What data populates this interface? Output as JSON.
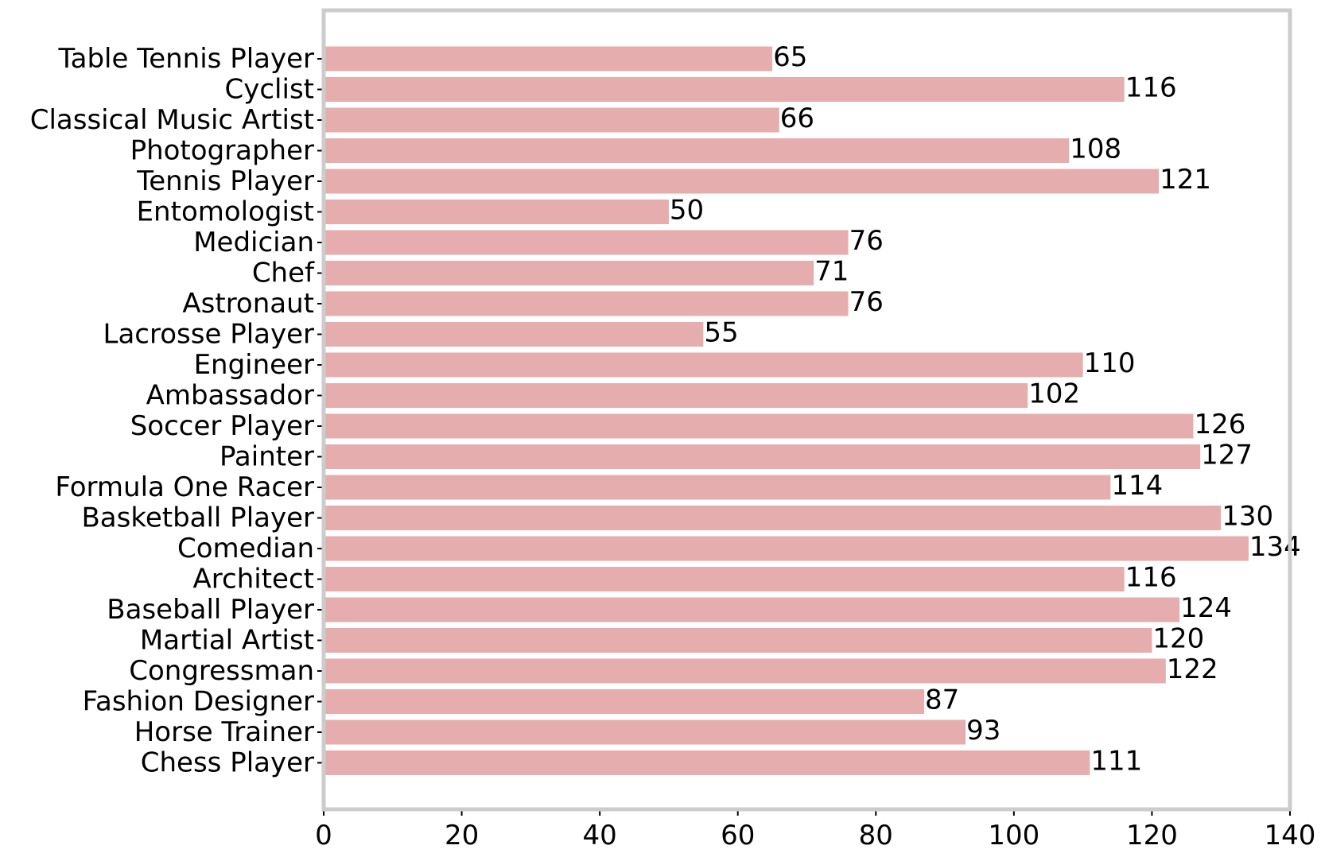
{
  "chart_data": {
    "type": "bar",
    "orientation": "horizontal",
    "categories": [
      "Table Tennis Player",
      "Cyclist",
      "Classical Music Artist",
      "Photographer",
      "Tennis Player",
      "Entomologist",
      "Medician",
      "Chef",
      "Astronaut",
      "Lacrosse Player",
      "Engineer",
      "Ambassador",
      "Soccer Player",
      "Painter",
      "Formula One Racer",
      "Basketball Player",
      "Comedian",
      "Architect",
      "Baseball Player",
      "Martial Artist",
      "Congressman",
      "Fashion Designer",
      "Horse Trainer",
      "Chess Player"
    ],
    "values": [
      65,
      116,
      66,
      108,
      121,
      50,
      76,
      71,
      76,
      55,
      110,
      102,
      126,
      127,
      114,
      130,
      134,
      116,
      124,
      120,
      122,
      87,
      93,
      111
    ],
    "xlim": [
      0,
      140
    ],
    "xticks": [
      0,
      20,
      40,
      60,
      80,
      100,
      120,
      140
    ],
    "title": "",
    "xlabel": "",
    "ylabel": "",
    "grid": false,
    "data_labels": true,
    "bar_color": "#e5adad",
    "frame_color": "#cccccc"
  }
}
